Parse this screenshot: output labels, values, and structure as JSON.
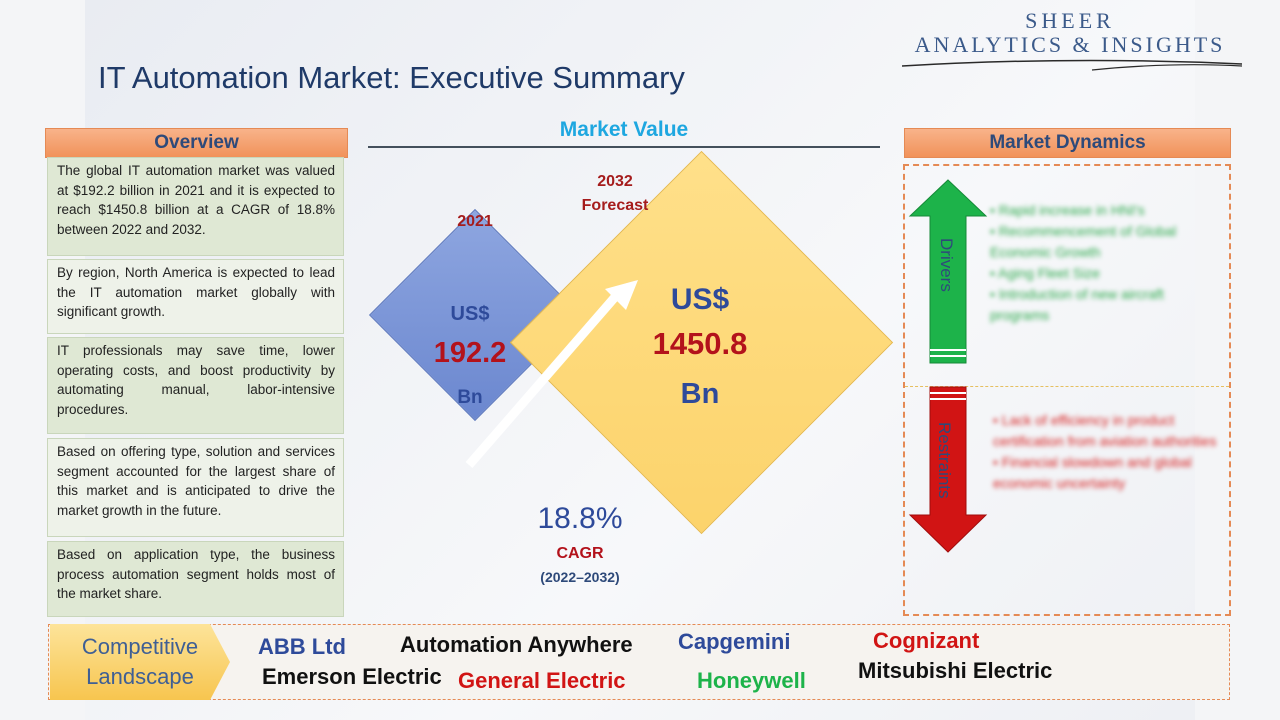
{
  "logo": {
    "line1": "SHEER",
    "line2": "ANALYTICS & INSIGHTS"
  },
  "title": "IT Automation Market: Executive Summary",
  "overview": {
    "header": "Overview",
    "items": [
      "The global IT automation market was valued at $192.2 billion in 2021 and it is expected to reach $1450.8 billion at a CAGR of 18.8% between 2022 and 2032.",
      "By region, North America is expected to lead the IT automation market globally with significant growth.",
      "IT professionals may save time, lower operating costs, and boost productivity by automating manual, labor-intensive procedures.",
      "Based on offering type, solution and services segment accounted for the largest share of this market and is anticipated to drive the market growth in the future.",
      "Based on application type, the business process automation segment holds most of the market share."
    ]
  },
  "market_value": {
    "title": "Market Value",
    "y2021": {
      "year": "2021",
      "currency": "US$",
      "value": "192.2",
      "unit": "Bn"
    },
    "y2032": {
      "year": "2032",
      "label": "Forecast",
      "currency": "US$",
      "value": "1450.8",
      "unit": "Bn"
    },
    "cagr": {
      "value": "18.8%",
      "label": "CAGR",
      "period": "(2022–2032)"
    }
  },
  "dynamics": {
    "header": "Market Dynamics",
    "drivers_label": "Drivers",
    "restraints_label": "Restraints",
    "drivers": [
      "Rapid increase in HNI's",
      "Recommencement of Global Economic Growth",
      "Aging Fleet Size",
      "Introduction of new aircraft programs"
    ],
    "restraints": [
      "Lack of efficiency in product certification from aviation authorities",
      "Financial slowdown and global economic uncertainty"
    ]
  },
  "competitive": {
    "label_line1": "Competitive",
    "label_line2": "Landscape",
    "companies": [
      "ABB Ltd",
      "Automation Anywhere",
      "Capgemini",
      "Cognizant",
      "Emerson Electric",
      "General Electric",
      "Honeywell",
      "Mitsubishi Electric"
    ]
  },
  "colors": {
    "navy": "#2e4a7a",
    "red": "#b3121b",
    "orange": "#f1925a",
    "green": "#2aa84a",
    "blue_diamond": "#6b87cf",
    "gold_diamond": "#fcd36b"
  }
}
